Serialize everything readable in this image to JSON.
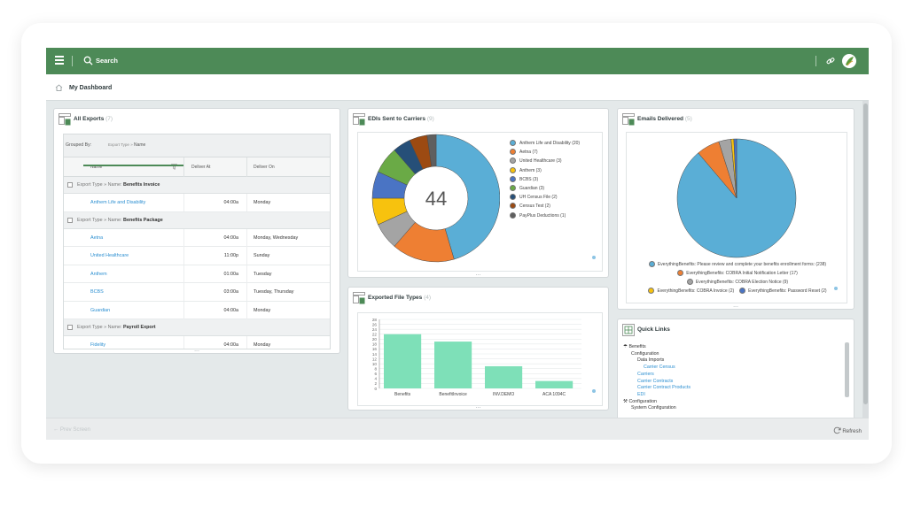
{
  "header": {
    "search_label": "Search"
  },
  "breadcrumb": {
    "title": "My Dashboard"
  },
  "all_exports": {
    "title": "All Exports",
    "count": "(7)",
    "grouped_by_label": "Grouped By:",
    "group_chip_path": "Export Type",
    "group_chip_sep": "»",
    "group_chip_name": "Name",
    "columns": [
      "Name",
      "Deliver At",
      "Deliver On"
    ],
    "groups": [
      {
        "prefix": "Export Type » Name:",
        "name": "Benefits Invoice",
        "rows": [
          {
            "name": "Anthem Life and Disability",
            "at": "04:00a",
            "on": "Monday"
          }
        ]
      },
      {
        "prefix": "Export Type » Name:",
        "name": "Benefits Package",
        "rows": [
          {
            "name": "Aetna",
            "at": "04:00a",
            "on": "Monday, Wednesday"
          },
          {
            "name": "United Healthcare",
            "at": "11:00p",
            "on": "Sunday"
          },
          {
            "name": "Anthem",
            "at": "01:00a",
            "on": "Tuesday"
          },
          {
            "name": "BCBS",
            "at": "03:00a",
            "on": "Tuesday, Thursday"
          },
          {
            "name": "Guardian",
            "at": "04:00a",
            "on": "Monday"
          }
        ]
      },
      {
        "prefix": "Export Type » Name:",
        "name": "Payroll Export",
        "rows": [
          {
            "name": "Fidelity",
            "at": "04:00a",
            "on": "Monday"
          }
        ]
      }
    ]
  },
  "edis": {
    "title": "EDIs Sent to Carriers",
    "count": "(9)",
    "center_total": "44",
    "chart_data": {
      "type": "pie",
      "categories": [
        "Anthem Life and Disability",
        "Aetna",
        "United Healthcare",
        "Anthem",
        "BCBS",
        "Guardian",
        "UH Census File",
        "Census Test",
        "PayPlus Deductions"
      ],
      "values": [
        20,
        7,
        3,
        3,
        3,
        3,
        2,
        2,
        1
      ],
      "labels": [
        "Anthem Life and Disability (20)",
        "Aetna (7)",
        "United Healthcare (3)",
        "Anthem (3)",
        "BCBS (3)",
        "Guardian (3)",
        "UH Census File (2)",
        "Census Test (2)",
        "PayPlus Deductions (1)"
      ],
      "colors": [
        "#5aaed6",
        "#ee7f33",
        "#a4a4a4",
        "#f7c20e",
        "#4a74c4",
        "#6aaa46",
        "#264f78",
        "#9c4a12",
        "#5f5f5f"
      ],
      "legend": "right"
    }
  },
  "emails": {
    "title": "Emails Delivered",
    "count": "(5)",
    "chart_data": {
      "type": "pie",
      "categories": [
        "EverythingBenefits: Please review and complete your benefits enrollment forms:",
        "EverythingBenefits: COBRA Initial Notification Letter",
        "EverythingBenefits: COBRA Election Notice",
        "EverythingBenefits: COBRA Invoice",
        "EverythingBenefits: Password Reset"
      ],
      "values": [
        238,
        17,
        9,
        2,
        2
      ],
      "labels": [
        "EverythingBenefits: Please review and complete your benefits enrollment forms: (238)",
        "EverythingBenefits: COBRA Initial Notification Letter (17)",
        "EverythingBenefits: COBRA Election Notice (9)",
        "EverythingBenefits: COBRA Invoice (2)",
        "EverythingBenefits: Password Reset (2)"
      ],
      "colors": [
        "#5aaed6",
        "#ee7f33",
        "#a4a4a4",
        "#f7c20e",
        "#4a74c4"
      ],
      "legend": "bottom"
    }
  },
  "file_types": {
    "title": "Exported File Types",
    "count": "(4)",
    "chart_data": {
      "type": "bar",
      "categories": [
        "Benefits",
        "BenefitInvoice",
        "INV.DEMO",
        "ACA 1094C"
      ],
      "values": [
        22,
        19,
        9,
        3
      ],
      "ylim": [
        0,
        28
      ],
      "yticks": [
        0,
        2,
        4,
        6,
        8,
        10,
        12,
        14,
        16,
        18,
        20,
        22,
        24,
        26,
        28
      ],
      "color": "#7ee0b8",
      "grid": true
    }
  },
  "quick_links": {
    "title": "Quick Links",
    "items": [
      {
        "label": "Benefits",
        "level": 0,
        "link": false,
        "icon": "umbrella-icon"
      },
      {
        "label": "Configuration",
        "level": 1,
        "link": false
      },
      {
        "label": "Data Imports",
        "level": 2,
        "link": false
      },
      {
        "label": "Carrier Census",
        "level": 3,
        "link": true
      },
      {
        "label": "Carriers",
        "level": 2,
        "link": true
      },
      {
        "label": "Carrier Contracts",
        "level": 2,
        "link": true
      },
      {
        "label": "Carrier Contract Products",
        "level": 2,
        "link": true
      },
      {
        "label": "EDI",
        "level": 2,
        "link": true
      },
      {
        "label": "Configuration",
        "level": 0,
        "link": false,
        "icon": "wrench-icon"
      },
      {
        "label": "System Configuration",
        "level": 1,
        "link": false
      }
    ]
  },
  "footer": {
    "prev_label": "Prev Screen",
    "refresh_label": "Refresh"
  }
}
